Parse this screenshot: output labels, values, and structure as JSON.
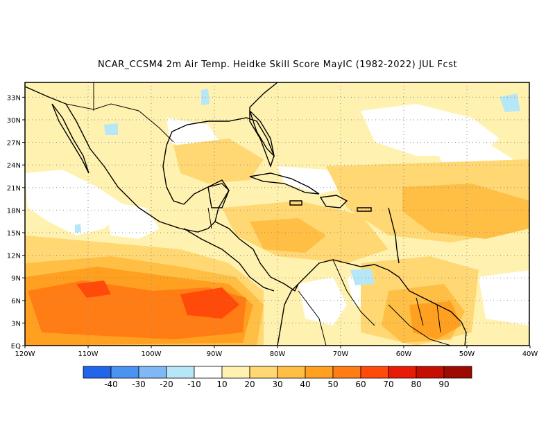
{
  "title": "NCAR_CCSM4  2m Air Temp. Heidke Skill Score MayIC (1982-2022) JUL Fcst",
  "axes": {
    "lat_ticks": [
      "33N",
      "30N",
      "27N",
      "24N",
      "21N",
      "18N",
      "15N",
      "12N",
      "9N",
      "6N",
      "3N",
      "EQ"
    ],
    "lon_ticks": [
      "120W",
      "110W",
      "100W",
      "90W",
      "80W",
      "70W",
      "60W",
      "50W",
      "40W"
    ]
  },
  "colorbar": {
    "colors": [
      "#2166e8",
      "#4a93f0",
      "#7fb8f5",
      "#b6e7f7",
      "#ffffff",
      "#fff2b0",
      "#ffd773",
      "#ffbf45",
      "#ffa020",
      "#ff7d14",
      "#ff4a0a",
      "#e81c06",
      "#c40e02",
      "#9c0a00"
    ],
    "labels": [
      "-40",
      "-30",
      "-20",
      "-10",
      "10",
      "20",
      "30",
      "40",
      "50",
      "60",
      "70",
      "80",
      "90"
    ]
  },
  "map_regions": [
    {
      "name": "eastern-pacific-skill-maximum",
      "level": "50-70"
    },
    {
      "name": "caribbean-basin",
      "level": "20-40"
    },
    {
      "name": "tropical-atlantic",
      "level": "20-40"
    },
    {
      "name": "northern-south-america",
      "level": "40-60"
    },
    {
      "name": "gulf-of-mexico",
      "level": "10-30"
    },
    {
      "name": "gulf-of-california",
      "level": "10-20"
    }
  ]
}
